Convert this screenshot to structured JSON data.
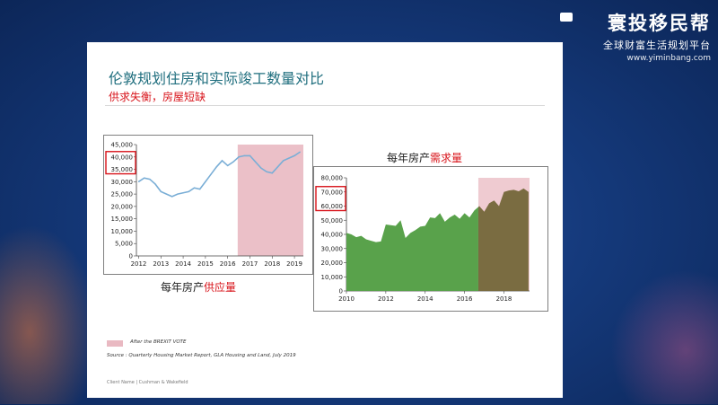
{
  "brand": {
    "title": "寰投移民帮",
    "subtitle": "全球财富生活规划平台",
    "url": "www.yiminbang.com"
  },
  "slide": {
    "title": "伦敦规划住房和实际竣工数量对比",
    "subtitle": "供求失衡，房屋短缺",
    "legend": "After the BREXIT VOTE",
    "source": "Source : Quarterly Housing Market Report, GLA Housing and Land, July 2019",
    "footer": "Client Name  |  Cushman & Wakefield",
    "supply_caption_prefix": "每年房产",
    "supply_caption_highlight": "供应量",
    "demand_caption_prefix": "每年房产",
    "demand_caption_highlight": "需求量"
  },
  "colors": {
    "title": "#1f6e7e",
    "highlight": "#d8141b",
    "shade": "#e9b9c2",
    "supply_line": "#7aaed6",
    "demand_fill": "#59a24b",
    "demand_fill_shaded": "#7a6c41"
  },
  "chart_data": [
    {
      "type": "line",
      "title": "每年房产供应量",
      "x": [
        2012.0,
        2012.25,
        2012.5,
        2012.75,
        2013.0,
        2013.25,
        2013.5,
        2013.75,
        2014.0,
        2014.25,
        2014.5,
        2014.75,
        2015.0,
        2015.25,
        2015.5,
        2015.75,
        2016.0,
        2016.25,
        2016.5,
        2016.75,
        2017.0,
        2017.25,
        2017.5,
        2017.75,
        2018.0,
        2018.25,
        2018.5,
        2018.75,
        2019.0,
        2019.25
      ],
      "series": [
        {
          "values": [
            30000,
            31500,
            31000,
            29000,
            26000,
            25000,
            24000,
            25000,
            25500,
            26000,
            27500,
            27000,
            30000,
            33000,
            36000,
            38500,
            36500,
            38000,
            40000,
            40500,
            40500,
            38000,
            35500,
            34000,
            33500,
            36000,
            38500,
            39500,
            40500,
            42000
          ]
        }
      ],
      "xticks": [
        "2012",
        "2013",
        "2014",
        "2015",
        "2016",
        "2017",
        "2018",
        "2019"
      ],
      "yticks": [
        "0",
        "5,000",
        "10,000",
        "15,000",
        "20,000",
        "25,000",
        "30,000",
        "35,000",
        "40,000",
        "45,000"
      ],
      "ylim": [
        0,
        45000
      ],
      "xlim": [
        2011.9,
        2019.4
      ],
      "shaded_from": 2016.45,
      "highlighted_ticks": [
        "35,000",
        "40,000"
      ]
    },
    {
      "type": "area",
      "title": "每年房产需求量",
      "x": [
        2010.0,
        2010.25,
        2010.5,
        2010.75,
        2011.0,
        2011.25,
        2011.5,
        2011.75,
        2012.0,
        2012.25,
        2012.5,
        2012.75,
        2013.0,
        2013.25,
        2013.5,
        2013.75,
        2014.0,
        2014.25,
        2014.5,
        2014.75,
        2015.0,
        2015.25,
        2015.5,
        2015.75,
        2016.0,
        2016.25,
        2016.5,
        2016.75,
        2017.0,
        2017.25,
        2017.5,
        2017.75,
        2018.0,
        2018.25,
        2018.5,
        2018.75,
        2019.0,
        2019.25
      ],
      "series": [
        {
          "values": [
            41000,
            40000,
            38000,
            39000,
            36500,
            35500,
            34500,
            35000,
            47000,
            46500,
            46000,
            50000,
            37500,
            41000,
            43000,
            45500,
            46000,
            52000,
            51500,
            55000,
            49000,
            52000,
            54000,
            51000,
            55000,
            52000,
            57000,
            60000,
            56000,
            62000,
            64000,
            60000,
            70000,
            71000,
            71500,
            70500,
            72500,
            70000
          ]
        }
      ],
      "xticks": [
        "2010",
        "2012",
        "2014",
        "2016",
        "2018"
      ],
      "yticks": [
        "0",
        "10,000",
        "20,000",
        "30,000",
        "40,000",
        "50,000",
        "60,000",
        "70,000",
        "80,000"
      ],
      "ylim": [
        0,
        80000
      ],
      "xlim": [
        2010.0,
        2019.3
      ],
      "shaded_from": 2016.7,
      "highlighted_ticks": [
        "60,000",
        "70,000"
      ]
    }
  ]
}
